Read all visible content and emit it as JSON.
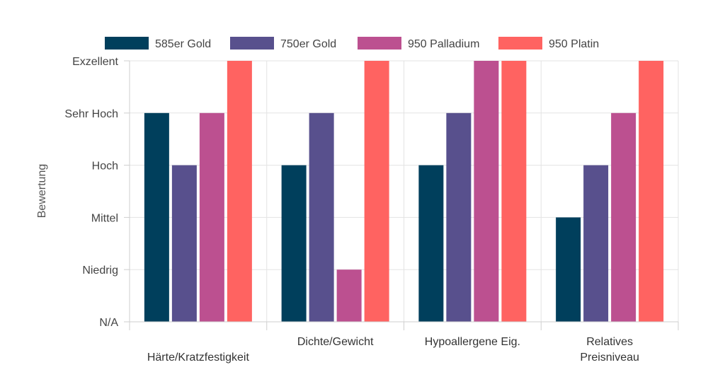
{
  "chart_data": {
    "type": "bar",
    "title": "",
    "xlabel": "",
    "ylabel": "Bewertung",
    "y_ticks": [
      "N/A",
      "Niedrig",
      "Mittel",
      "Hoch",
      "Sehr Hoch",
      "Exzellent"
    ],
    "ylim": [
      0,
      5
    ],
    "categories": [
      [
        "Härte/Kratzfestigkeit"
      ],
      [
        "Dichte/Gewicht"
      ],
      [
        "Hypoallergene Eig."
      ],
      [
        "Relatives",
        "Preisniveau"
      ]
    ],
    "series": [
      {
        "name": "585er Gold",
        "color": "#003f5c",
        "values": [
          4,
          3,
          3,
          2
        ]
      },
      {
        "name": "750er Gold",
        "color": "#58508d",
        "values": [
          3,
          4,
          4,
          3
        ]
      },
      {
        "name": "950 Palladium",
        "color": "#bc5090",
        "values": [
          4,
          1,
          5,
          4
        ]
      },
      {
        "name": "950 Platin",
        "color": "#ff6361",
        "values": [
          5,
          5,
          5,
          5
        ]
      }
    ],
    "grid": true,
    "legend_position": "top"
  }
}
